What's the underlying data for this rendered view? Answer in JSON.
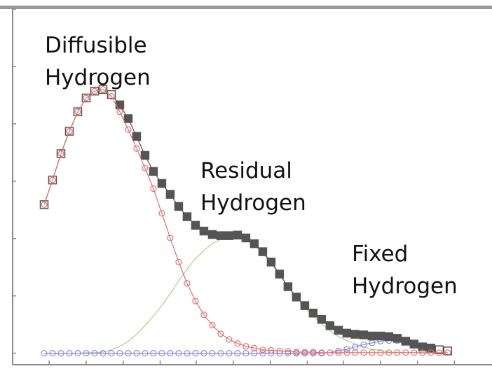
{
  "chart_data": {
    "type": "line",
    "annotations": [
      "Diffusible Hydrogen",
      "Residual Hydrogen",
      "Fixed Hydrogen"
    ],
    "x": [
      0,
      1,
      2,
      3,
      4,
      5,
      6,
      7,
      8,
      9,
      10,
      11,
      12,
      13,
      14,
      15,
      16,
      17,
      18,
      19,
      20,
      21,
      22,
      23,
      24,
      25,
      26,
      27,
      28,
      29,
      30,
      31,
      32,
      33,
      34,
      35,
      36,
      37,
      38,
      39,
      40,
      41,
      42,
      43,
      44,
      45,
      46,
      47,
      48
    ],
    "series": [
      {
        "color": "#555555",
        "marker": "square",
        "values": [
          2.59,
          3.02,
          3.48,
          3.87,
          4.21,
          4.45,
          4.57,
          4.6,
          4.51,
          4.33,
          4.09,
          3.78,
          3.45,
          3.17,
          2.96,
          2.77,
          2.56,
          2.38,
          2.23,
          2.13,
          2.07,
          2.05,
          2.05,
          2.06,
          2.01,
          1.91,
          1.77,
          1.59,
          1.38,
          1.16,
          0.98,
          0.83,
          0.7,
          0.59,
          0.48,
          0.4,
          0.35,
          0.33,
          0.32,
          0.3,
          0.3,
          0.29,
          0.26,
          0.21,
          0.16,
          0.11,
          0.09,
          0.06,
          0.04
        ]
      },
      {
        "color": "#e07070",
        "marker": "circle",
        "values": [
          2.59,
          3.02,
          3.48,
          3.87,
          4.21,
          4.45,
          4.57,
          4.6,
          4.48,
          4.21,
          3.9,
          3.57,
          3.23,
          2.87,
          2.44,
          2.01,
          1.59,
          1.22,
          0.91,
          0.67,
          0.49,
          0.34,
          0.24,
          0.17,
          0.12,
          0.09,
          0.06,
          0.05,
          0.04,
          0.03,
          0.02,
          0.02,
          0.02,
          0.01,
          0.01,
          0.01,
          0.01,
          0.01,
          0.01,
          0.01,
          0.01,
          0.01,
          0.01,
          0.01,
          0.01,
          0.01,
          0.01,
          0.01,
          0.01
        ]
      },
      {
        "color": "#a8d090",
        "marker": "none",
        "values": [
          0,
          0,
          0,
          0,
          0,
          0.01,
          0.01,
          0.02,
          0.06,
          0.12,
          0.21,
          0.33,
          0.48,
          0.65,
          0.83,
          1.04,
          1.26,
          1.46,
          1.65,
          1.79,
          1.91,
          1.99,
          2.01,
          2.01,
          1.98,
          1.89,
          1.74,
          1.56,
          1.37,
          1.16,
          0.98,
          0.79,
          0.65,
          0.51,
          0.39,
          0.29,
          0.22,
          0.16,
          0.11,
          0.07,
          0.05,
          0.02,
          0.01,
          0.01,
          0.01,
          0,
          0,
          0,
          0
        ]
      },
      {
        "color": "#8c8ce0",
        "marker": "circle",
        "values": [
          0,
          0,
          0,
          0,
          0,
          0,
          0,
          0,
          0,
          0,
          0,
          0,
          0,
          0,
          0,
          0,
          0,
          0,
          0,
          0,
          0,
          0,
          0,
          0,
          0,
          0,
          0,
          0,
          0,
          0,
          0,
          0,
          0,
          0,
          0.01,
          0.04,
          0.07,
          0.11,
          0.15,
          0.18,
          0.21,
          0.22,
          0.22,
          0.2,
          0.16,
          0.11,
          0.09,
          0.06,
          0.04
        ]
      }
    ],
    "xlim": [
      -3.75,
      53.1
    ],
    "xticks": [
      0.6,
      5,
      9.4,
      13.8,
      18.1,
      22.5,
      26.9,
      31.3,
      35.6,
      40,
      44.4,
      48.8
    ],
    "ylim": [
      -0.2,
      6
    ],
    "yticks": [
      0,
      1,
      2,
      3,
      4,
      5,
      6
    ],
    "grid": false
  }
}
